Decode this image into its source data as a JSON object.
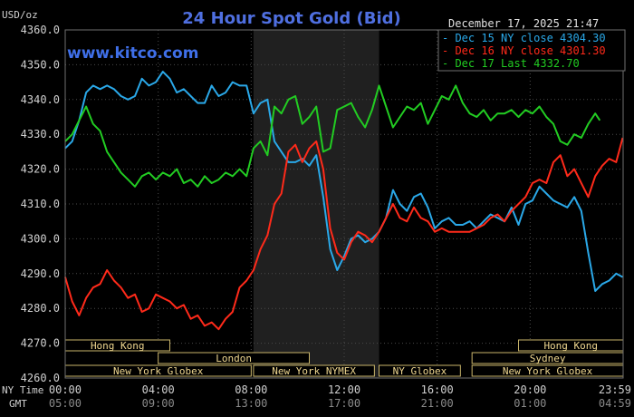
{
  "chart_data": {
    "type": "line",
    "title": "24 Hour Spot Gold (Bid)",
    "ylabel": "USD/oz",
    "brand": "www.kitco.com",
    "datetime": "December 17, 2025 21:47",
    "ylim": [
      4260,
      4360
    ],
    "yticks": [
      "4360.0",
      "4350.0",
      "4340.0",
      "4330.0",
      "4320.0",
      "4310.0",
      "4300.0",
      "4290.0",
      "4280.0",
      "4270.0",
      "4260.0"
    ],
    "ytick_values": [
      4360,
      4350,
      4340,
      4330,
      4320,
      4310,
      4300,
      4290,
      4280,
      4270,
      4260
    ],
    "xlim": [
      0,
      24
    ],
    "x_row_labels": {
      "ny": "NY Time",
      "gmt": "GMT"
    },
    "xticks_ny": [
      "00:00",
      "04:00",
      "08:00",
      "12:00",
      "16:00",
      "20:00",
      "23:59"
    ],
    "xticks_gmt": [
      "05:00",
      "09:00",
      "13:00",
      "17:00",
      "21:00",
      "01:00",
      "04:59"
    ],
    "xtick_positions": [
      0,
      4,
      8,
      12,
      16,
      20,
      24
    ],
    "highlight_range": [
      8.1,
      13.5
    ],
    "series": [
      {
        "name": "Dec 15 NY close 4304.30",
        "color": "#2aa8e8",
        "x": [
          0,
          0.3,
          0.6,
          0.9,
          1.2,
          1.5,
          1.8,
          2.1,
          2.4,
          2.7,
          3.0,
          3.3,
          3.6,
          3.9,
          4.2,
          4.5,
          4.8,
          5.1,
          5.4,
          5.7,
          6.0,
          6.3,
          6.6,
          6.9,
          7.2,
          7.5,
          7.8,
          8.1,
          8.4,
          8.7,
          9.0,
          9.3,
          9.6,
          9.9,
          10.2,
          10.5,
          10.8,
          11.1,
          11.4,
          11.7,
          12.0,
          12.3,
          12.6,
          12.9,
          13.2,
          13.5,
          13.8,
          14.1,
          14.4,
          14.7,
          15.0,
          15.3,
          15.6,
          15.9,
          16.2,
          16.5,
          16.8,
          17.1,
          17.4,
          17.7,
          18.0,
          18.3,
          18.6,
          18.9,
          19.2,
          19.5,
          19.8,
          20.1,
          20.4,
          20.7,
          21.0,
          21.3,
          21.6,
          21.9,
          22.2,
          22.5,
          22.8,
          23.1,
          23.4,
          23.7,
          23.98
        ],
        "y": [
          4326,
          4328,
          4334,
          4342,
          4344,
          4343,
          4344,
          4343,
          4341,
          4340,
          4341,
          4346,
          4344,
          4345,
          4348,
          4346,
          4342,
          4343,
          4341,
          4339,
          4339,
          4344,
          4341,
          4342,
          4345,
          4344,
          4344,
          4336,
          4339,
          4340,
          4328,
          4325,
          4322,
          4322,
          4323,
          4321,
          4324,
          4312,
          4297,
          4291,
          4295,
          4300,
          4301,
          4299,
          4300,
          4302,
          4306,
          4314,
          4310,
          4308,
          4312,
          4313,
          4309,
          4303,
          4305,
          4306,
          4304,
          4304,
          4305,
          4303,
          4305,
          4307,
          4306,
          4305,
          4309,
          4304,
          4310,
          4311,
          4315,
          4313,
          4311,
          4310,
          4309,
          4312,
          4308,
          4296,
          4285,
          4287,
          4288,
          4290,
          4289
        ]
      },
      {
        "name": "Dec 16 NY close 4301.30",
        "color": "#ff2a1a",
        "x": [
          0,
          0.3,
          0.6,
          0.9,
          1.2,
          1.5,
          1.8,
          2.1,
          2.4,
          2.7,
          3.0,
          3.3,
          3.6,
          3.9,
          4.2,
          4.5,
          4.8,
          5.1,
          5.4,
          5.7,
          6.0,
          6.3,
          6.6,
          6.9,
          7.2,
          7.5,
          7.8,
          8.1,
          8.4,
          8.7,
          9.0,
          9.3,
          9.6,
          9.9,
          10.2,
          10.5,
          10.8,
          11.1,
          11.4,
          11.7,
          12.0,
          12.3,
          12.6,
          12.9,
          13.2,
          13.5,
          13.8,
          14.1,
          14.4,
          14.7,
          15.0,
          15.3,
          15.6,
          15.9,
          16.2,
          16.5,
          16.8,
          17.1,
          17.4,
          17.7,
          18.0,
          18.3,
          18.6,
          18.9,
          19.2,
          19.5,
          19.8,
          20.1,
          20.4,
          20.7,
          21.0,
          21.3,
          21.6,
          21.9,
          22.2,
          22.5,
          22.8,
          23.1,
          23.4,
          23.7,
          23.98
        ],
        "y": [
          4289,
          4282,
          4278,
          4283,
          4286,
          4287,
          4291,
          4288,
          4286,
          4283,
          4284,
          4279,
          4280,
          4284,
          4283,
          4282,
          4280,
          4281,
          4277,
          4278,
          4275,
          4276,
          4274,
          4277,
          4279,
          4286,
          4288,
          4291,
          4297,
          4301,
          4310,
          4313,
          4325,
          4327,
          4322,
          4326,
          4328,
          4320,
          4303,
          4296,
          4294,
          4299,
          4302,
          4301,
          4299,
          4302,
          4306,
          4310,
          4306,
          4305,
          4309,
          4306,
          4305,
          4302,
          4303,
          4302,
          4302,
          4302,
          4302,
          4303,
          4304,
          4306,
          4307,
          4305,
          4308,
          4310,
          4312,
          4316,
          4317,
          4316,
          4322,
          4324,
          4318,
          4320,
          4316,
          4312,
          4318,
          4321,
          4323,
          4322,
          4329
        ]
      },
      {
        "name": "Dec 17 Last 4332.70",
        "color": "#22cc22",
        "x": [
          0,
          0.3,
          0.6,
          0.9,
          1.2,
          1.5,
          1.8,
          2.1,
          2.4,
          2.7,
          3.0,
          3.3,
          3.6,
          3.9,
          4.2,
          4.5,
          4.8,
          5.1,
          5.4,
          5.7,
          6.0,
          6.3,
          6.6,
          6.9,
          7.2,
          7.5,
          7.8,
          8.1,
          8.4,
          8.7,
          9.0,
          9.3,
          9.6,
          9.9,
          10.2,
          10.5,
          10.8,
          11.1,
          11.4,
          11.7,
          12.0,
          12.3,
          12.6,
          12.9,
          13.2,
          13.5,
          13.8,
          14.1,
          14.4,
          14.7,
          15.0,
          15.3,
          15.6,
          15.9,
          16.2,
          16.5,
          16.8,
          17.1,
          17.4,
          17.7,
          18.0,
          18.3,
          18.6,
          18.9,
          19.2,
          19.5,
          19.8,
          20.1,
          20.4,
          20.7,
          21.0,
          21.3,
          21.6,
          21.9,
          22.2,
          22.5,
          22.8,
          23.0
        ],
        "y": [
          4328,
          4330,
          4334,
          4338,
          4333,
          4331,
          4325,
          4322,
          4319,
          4317,
          4315,
          4318,
          4319,
          4317,
          4319,
          4318,
          4320,
          4316,
          4317,
          4315,
          4318,
          4316,
          4317,
          4319,
          4318,
          4320,
          4318,
          4326,
          4328,
          4324,
          4338,
          4336,
          4340,
          4341,
          4333,
          4335,
          4338,
          4325,
          4326,
          4337,
          4338,
          4339,
          4335,
          4332,
          4337,
          4344,
          4338,
          4332,
          4335,
          4338,
          4337,
          4339,
          4333,
          4337,
          4341,
          4340,
          4344,
          4339,
          4336,
          4335,
          4337,
          4334,
          4336,
          4336,
          4337,
          4335,
          4337,
          4336,
          4338,
          4335,
          4333,
          4328,
          4327,
          4330,
          4329,
          4333,
          4336,
          4334
        ]
      }
    ],
    "sessions": [
      {
        "label": "Hong Kong",
        "start": 0,
        "end": 4.5,
        "row": 0
      },
      {
        "label": "Hong Kong",
        "start": 19.5,
        "end": 24,
        "row": 0
      },
      {
        "label": "London",
        "start": 4,
        "end": 10.5,
        "row": 1
      },
      {
        "label": "Sydney",
        "start": 17.5,
        "end": 24,
        "row": 1
      },
      {
        "label": "New York Globex",
        "start": 0,
        "end": 8,
        "row": 2
      },
      {
        "label": "New York NYMEX",
        "start": 8.1,
        "end": 13.3,
        "row": 2
      },
      {
        "label": "NY Globex",
        "start": 13.5,
        "end": 17,
        "row": 2
      },
      {
        "label": "New York Globex",
        "start": 17.5,
        "end": 24,
        "row": 2
      }
    ]
  }
}
